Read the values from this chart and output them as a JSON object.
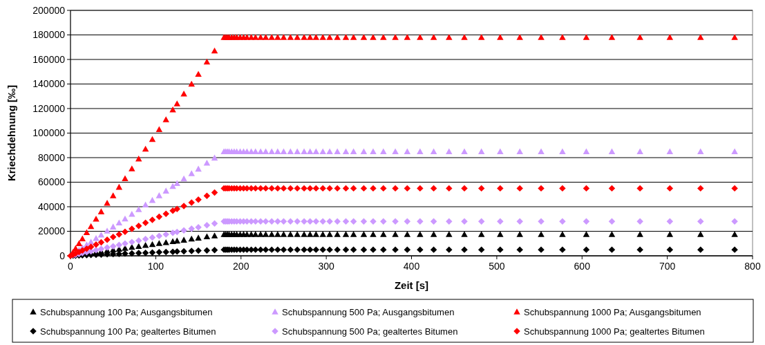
{
  "chart_data": {
    "type": "scatter",
    "xlabel": "Zeit [s]",
    "ylabel": "Kriechdehnung [‰]",
    "x": [
      0,
      3,
      6,
      10,
      14,
      19,
      24,
      30,
      36,
      43,
      50,
      57,
      64,
      72,
      80,
      88,
      96,
      104,
      112,
      120,
      125,
      133,
      142,
      150,
      160,
      169,
      180,
      182,
      184,
      186,
      189,
      192,
      195,
      199,
      203,
      207,
      212,
      217,
      223,
      229,
      236,
      243,
      250,
      258,
      266,
      274,
      281,
      288,
      296,
      304,
      313,
      323,
      332,
      344,
      355,
      367,
      381,
      395,
      410,
      426,
      444,
      462,
      482,
      504,
      527,
      552,
      577,
      605,
      635,
      668,
      703,
      739,
      779
    ],
    "series": [
      {
        "name": "Schubspannung 100 Pa; Ausgangsbitumen",
        "color": "#000000",
        "marker": "triangle",
        "values": [
          null,
          null,
          null,
          null,
          null,
          null,
          2300,
          2900,
          3500,
          4200,
          4900,
          5500,
          6200,
          7000,
          7800,
          8600,
          9300,
          10100,
          10900,
          11700,
          12200,
          12900,
          13800,
          14600,
          15600,
          16400,
          17500,
          17500,
          17500,
          17500,
          17500,
          17500,
          17500,
          17500,
          17500,
          17500,
          17500,
          17500,
          17500,
          17500,
          17500,
          17500,
          17500,
          17500,
          17500,
          17500,
          17500,
          17500,
          17500,
          17500,
          17500,
          17500,
          17500,
          17500,
          17500,
          17500,
          17500,
          17500,
          17500,
          17500,
          17500,
          17500,
          17500,
          17500,
          17500,
          17500,
          17500,
          17500,
          17500,
          17500,
          17500,
          17500,
          17500
        ]
      },
      {
        "name": "Schubspannung 500 Pa; Ausgangsbitumen",
        "color": "#cc99ff",
        "marker": "triangle",
        "values": [
          null,
          null,
          null,
          4700,
          6600,
          9000,
          11300,
          14200,
          17000,
          20300,
          23600,
          26900,
          30200,
          34000,
          37800,
          41600,
          45300,
          49100,
          52900,
          56700,
          59000,
          62800,
          67100,
          70800,
          75600,
          79800,
          85000,
          85000,
          85000,
          85000,
          85000,
          85000,
          85000,
          85000,
          85000,
          85000,
          85000,
          85000,
          85000,
          85000,
          85000,
          85000,
          85000,
          85000,
          85000,
          85000,
          85000,
          85000,
          85000,
          85000,
          85000,
          85000,
          85000,
          85000,
          85000,
          85000,
          85000,
          85000,
          85000,
          85000,
          85000,
          85000,
          85000,
          85000,
          85000,
          85000,
          85000,
          85000,
          85000,
          85000,
          85000,
          85000,
          85000
        ]
      },
      {
        "name": "Schubspannung 1000 Pa; Ausgangsbitumen",
        "color": "#ff0000",
        "marker": "triangle",
        "values": [
          null,
          3000,
          6000,
          10000,
          14000,
          19000,
          24000,
          30000,
          36000,
          43000,
          49000,
          56000,
          63000,
          71000,
          79000,
          87000,
          95000,
          103000,
          111000,
          119000,
          124000,
          132000,
          140000,
          148000,
          158000,
          167000,
          178000,
          178000,
          178000,
          178000,
          178000,
          178000,
          178000,
          178000,
          178000,
          178000,
          178000,
          178000,
          178000,
          178000,
          178000,
          178000,
          178000,
          178000,
          178000,
          178000,
          178000,
          178000,
          178000,
          178000,
          178000,
          178000,
          178000,
          178000,
          178000,
          178000,
          178000,
          178000,
          178000,
          178000,
          178000,
          178000,
          178000,
          178000,
          178000,
          178000,
          178000,
          178000,
          178000,
          178000,
          178000,
          178000,
          178000
        ]
      },
      {
        "name": "Schubspannung 100 Pa; gealtertes Bitumen",
        "color": "#000000",
        "marker": "diamond",
        "values": [
          null,
          100,
          200,
          300,
          400,
          500,
          700,
          800,
          1000,
          1200,
          1400,
          1600,
          1800,
          2000,
          2200,
          2400,
          2700,
          2900,
          3100,
          3300,
          3500,
          3700,
          3900,
          4200,
          4400,
          4700,
          5000,
          5000,
          5000,
          5000,
          5000,
          5000,
          5000,
          5000,
          5000,
          5000,
          5000,
          5000,
          5000,
          5000,
          5000,
          5000,
          5000,
          5000,
          5000,
          5000,
          5000,
          5000,
          5000,
          5000,
          5000,
          5000,
          5000,
          5000,
          5000,
          5000,
          5000,
          5000,
          5000,
          5000,
          5000,
          5000,
          5000,
          5000,
          5000,
          5000,
          5000,
          5000,
          5000,
          5000,
          5000,
          5000,
          5000
        ]
      },
      {
        "name": "Schubspannung 500 Pa; gealtertes Bitumen",
        "color": "#cc99ff",
        "marker": "diamond",
        "values": [
          null,
          500,
          900,
          1600,
          2200,
          3000,
          3700,
          4700,
          5600,
          6700,
          7800,
          8900,
          10000,
          11200,
          12400,
          13700,
          14900,
          16200,
          17400,
          18700,
          19400,
          20700,
          22100,
          23300,
          24900,
          26300,
          28000,
          28000,
          28000,
          28000,
          28000,
          28000,
          28000,
          28000,
          28000,
          28000,
          28000,
          28000,
          28000,
          28000,
          28000,
          28000,
          28000,
          28000,
          28000,
          28000,
          28000,
          28000,
          28000,
          28000,
          28000,
          28000,
          28000,
          28000,
          28000,
          28000,
          28000,
          28000,
          28000,
          28000,
          28000,
          28000,
          28000,
          28000,
          28000,
          28000,
          28000,
          28000,
          28000,
          28000,
          28000,
          28000,
          28000
        ]
      },
      {
        "name": "Schubspannung 1000 Pa; gealtertes Bitumen",
        "color": "#ff0000",
        "marker": "diamond",
        "values": [
          0,
          900,
          1800,
          3100,
          4300,
          5800,
          7300,
          9200,
          11000,
          13100,
          15300,
          17400,
          19600,
          22000,
          24400,
          26900,
          29300,
          31800,
          34200,
          36700,
          38200,
          40600,
          43400,
          45800,
          48900,
          51600,
          55000,
          55000,
          55000,
          55000,
          55000,
          55000,
          55000,
          55000,
          55000,
          55000,
          55000,
          55000,
          55000,
          55000,
          55000,
          55000,
          55000,
          55000,
          55000,
          55000,
          55000,
          55000,
          55000,
          55000,
          55000,
          55000,
          55000,
          55000,
          55000,
          55000,
          55000,
          55000,
          55000,
          55000,
          55000,
          55000,
          55000,
          55000,
          55000,
          55000,
          55000,
          55000,
          55000,
          55000,
          55000,
          55000,
          55000
        ]
      }
    ],
    "xlim": [
      0,
      800
    ],
    "xticks": [
      0,
      100,
      200,
      300,
      400,
      500,
      600,
      700,
      800
    ],
    "ylim": [
      0,
      200000
    ],
    "yticks": [
      0,
      20000,
      40000,
      60000,
      80000,
      100000,
      120000,
      140000,
      160000,
      180000,
      200000
    ],
    "grid": "y",
    "legend": "bottom"
  }
}
